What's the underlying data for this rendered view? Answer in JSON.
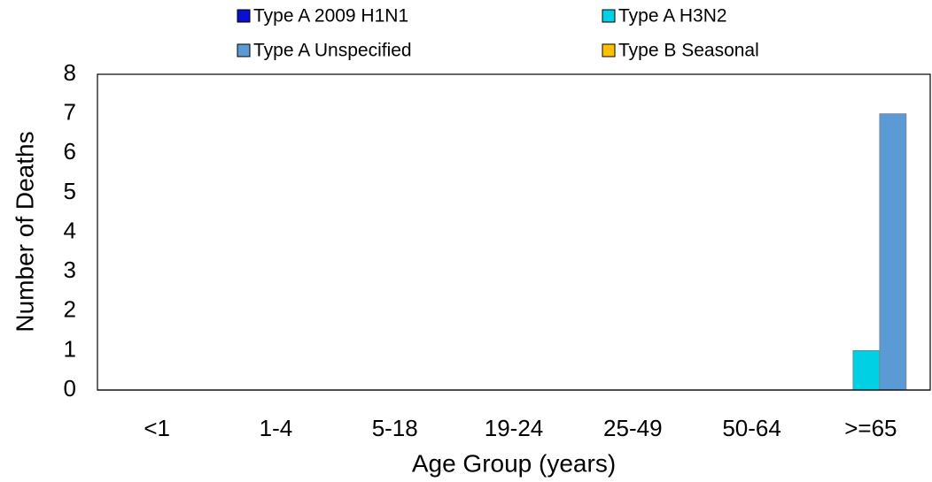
{
  "chart_data": {
    "type": "bar",
    "x_label": "Age Group (years)",
    "y_label": "Number of Deaths",
    "categories": [
      "<1",
      "1-4",
      "5-18",
      "19-24",
      "25-49",
      "50-64",
      ">=65"
    ],
    "series": [
      {
        "name": "Type A 2009 H1N1",
        "color": "#0a10d0",
        "values": [
          0,
          0,
          0,
          0,
          0,
          0,
          0
        ]
      },
      {
        "name": "Type A H3N2",
        "color": "#00d0e4",
        "values": [
          0,
          0,
          0,
          0,
          0,
          0,
          1
        ]
      },
      {
        "name": "Type A Unspecified",
        "color": "#5b9bd5",
        "values": [
          0,
          0,
          0,
          0,
          0,
          0,
          7
        ]
      },
      {
        "name": "Type B Seasonal",
        "color": "#ffc000",
        "values": [
          0,
          0,
          0,
          0,
          0,
          0,
          0
        ]
      }
    ],
    "ylim": [
      0,
      8
    ],
    "yticks": [
      0,
      1,
      2,
      3,
      4,
      5,
      6,
      7,
      8
    ],
    "grid": false
  }
}
